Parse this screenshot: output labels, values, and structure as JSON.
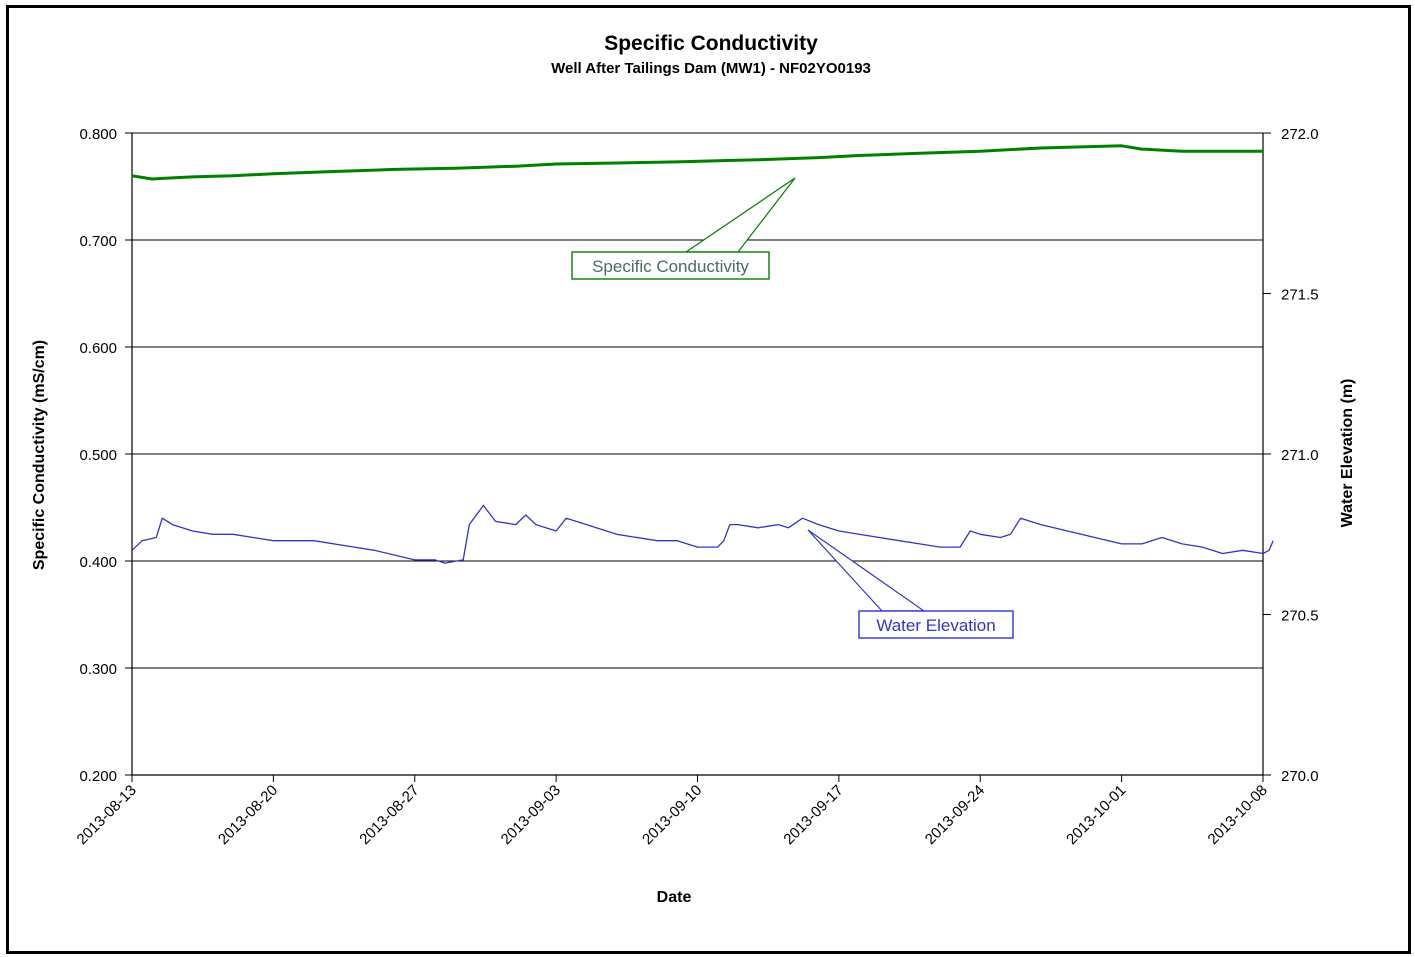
{
  "chart_data": {
    "type": "line",
    "title": "Specific Conductivity",
    "subtitle": "Well After Tailings Dam (MW1) - NF02YO0193",
    "xlabel": "Date",
    "ylabel_left": "Specific Conductivity  (mS/cm)",
    "ylabel_right": "Water Elevation (m)",
    "x_ticks": [
      "2013-08-13",
      "2013-08-20",
      "2013-08-27",
      "2013-09-03",
      "2013-09-10",
      "2013-09-17",
      "2013-09-24",
      "2013-10-01",
      "2013-10-08"
    ],
    "ylim_left": [
      0.2,
      0.8
    ],
    "yticks_left": [
      "0.200",
      "0.300",
      "0.400",
      "0.500",
      "0.600",
      "0.700",
      "0.800"
    ],
    "ylim_right": [
      270.0,
      272.0
    ],
    "yticks_right": [
      "270.0",
      "270.5",
      "271.0",
      "271.5",
      "272.0"
    ],
    "grid": "horizontal",
    "series": [
      {
        "name": "Specific Conductivity",
        "axis": "left",
        "color": "#008000",
        "points": [
          [
            "2013-08-13",
            0.76
          ],
          [
            "2013-08-14",
            0.757
          ],
          [
            "2013-08-15",
            0.758
          ],
          [
            "2013-08-16",
            0.759
          ],
          [
            "2013-08-18",
            0.76
          ],
          [
            "2013-08-20",
            0.762
          ],
          [
            "2013-08-23",
            0.764
          ],
          [
            "2013-08-26",
            0.766
          ],
          [
            "2013-08-29",
            0.767
          ],
          [
            "2013-09-01",
            0.769
          ],
          [
            "2013-09-03",
            0.771
          ],
          [
            "2013-09-06",
            0.772
          ],
          [
            "2013-09-09",
            0.773
          ],
          [
            "2013-09-11",
            0.774
          ],
          [
            "2013-09-13",
            0.775
          ],
          [
            "2013-09-16",
            0.777
          ],
          [
            "2013-09-18",
            0.779
          ],
          [
            "2013-09-21",
            0.781
          ],
          [
            "2013-09-24",
            0.783
          ],
          [
            "2013-09-27",
            0.786
          ],
          [
            "2013-09-29",
            0.787
          ],
          [
            "2013-10-01",
            0.788
          ],
          [
            "2013-10-02",
            0.785
          ],
          [
            "2013-10-04",
            0.783
          ],
          [
            "2013-10-06",
            0.783
          ],
          [
            "2013-10-08",
            0.783
          ]
        ]
      },
      {
        "name": "Water Elevation",
        "axis": "right",
        "color": "#3333cc",
        "points": [
          [
            "2013-08-13",
            270.7
          ],
          [
            "2013-08-13.5",
            270.73
          ],
          [
            "2013-08-14.2",
            270.74
          ],
          [
            "2013-08-14.5",
            270.8
          ],
          [
            "2013-08-15",
            270.78
          ],
          [
            "2013-08-16",
            270.76
          ],
          [
            "2013-08-17",
            270.75
          ],
          [
            "2013-08-18",
            270.75
          ],
          [
            "2013-08-19",
            270.74
          ],
          [
            "2013-08-20",
            270.73
          ],
          [
            "2013-08-22",
            270.73
          ],
          [
            "2013-08-24",
            270.71
          ],
          [
            "2013-08-25",
            270.7
          ],
          [
            "2013-08-27",
            270.67
          ],
          [
            "2013-08-28",
            270.67
          ],
          [
            "2013-08-28.5",
            270.66
          ],
          [
            "2013-08-29.4",
            270.67
          ],
          [
            "2013-08-29.7",
            270.78
          ],
          [
            "2013-08-30.4",
            270.84
          ],
          [
            "2013-08-31",
            270.79
          ],
          [
            "2013-09-01",
            270.78
          ],
          [
            "2013-09-01.5",
            270.81
          ],
          [
            "2013-09-02",
            270.78
          ],
          [
            "2013-09-03",
            270.76
          ],
          [
            "2013-09-03.5",
            270.8
          ],
          [
            "2013-09-04",
            270.79
          ],
          [
            "2013-09-06",
            270.75
          ],
          [
            "2013-09-08",
            270.73
          ],
          [
            "2013-09-09",
            270.73
          ],
          [
            "2013-09-10",
            270.71
          ],
          [
            "2013-09-11",
            270.71
          ],
          [
            "2013-09-11.3",
            270.73
          ],
          [
            "2013-09-11.6",
            270.78
          ],
          [
            "2013-09-12",
            270.78
          ],
          [
            "2013-09-13",
            270.77
          ],
          [
            "2013-09-14",
            270.78
          ],
          [
            "2013-09-14.5",
            270.77
          ],
          [
            "2013-09-15.2",
            270.8
          ],
          [
            "2013-09-16",
            270.78
          ],
          [
            "2013-09-17",
            270.76
          ],
          [
            "2013-09-19",
            270.74
          ],
          [
            "2013-09-21",
            270.72
          ],
          [
            "2013-09-22",
            270.71
          ],
          [
            "2013-09-23",
            270.71
          ],
          [
            "2013-09-23.5",
            270.76
          ],
          [
            "2013-09-24",
            270.75
          ],
          [
            "2013-09-25",
            270.74
          ],
          [
            "2013-09-25.5",
            270.75
          ],
          [
            "2013-09-26",
            270.8
          ],
          [
            "2013-09-27",
            270.78
          ],
          [
            "2013-09-29",
            270.75
          ],
          [
            "2013-10-01",
            270.72
          ],
          [
            "2013-10-02",
            270.72
          ],
          [
            "2013-10-03",
            270.74
          ],
          [
            "2013-10-04",
            270.72
          ],
          [
            "2013-10-05",
            270.71
          ],
          [
            "2013-10-06",
            270.69
          ],
          [
            "2013-10-07",
            270.7
          ],
          [
            "2013-10-08",
            270.69
          ],
          [
            "2013-10-08.3",
            270.7
          ],
          [
            "2013-10-08.5",
            270.73
          ]
        ]
      }
    ],
    "annotations": [
      {
        "text": "Specific Conductivity",
        "color": "#008000",
        "text_color": "#4a6b6b",
        "points_to_series": "Specific Conductivity"
      },
      {
        "text": "Water Elevation",
        "color": "#3333cc",
        "text_color": "#3333cc",
        "points_to_series": "Water Elevation"
      }
    ]
  }
}
